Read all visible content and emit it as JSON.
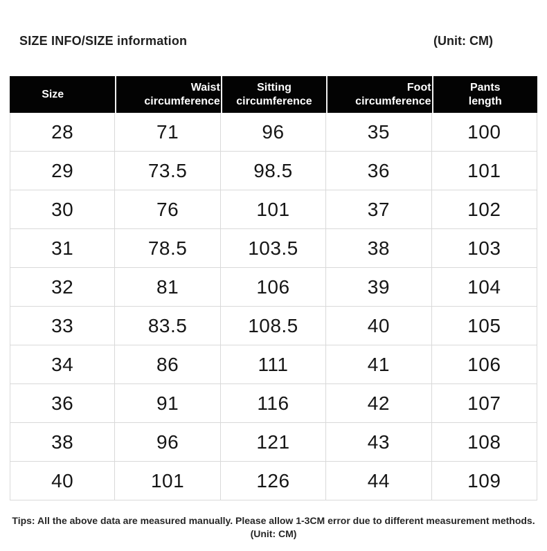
{
  "header": {
    "title": "SIZE INFO/SIZE information",
    "unit": "(Unit: CM)"
  },
  "table": {
    "columns": [
      {
        "key": "size",
        "lines": [
          "Size"
        ]
      },
      {
        "key": "waist-circumference",
        "lines": [
          "Waist",
          "circumference"
        ]
      },
      {
        "key": "sitting-circumference",
        "lines": [
          "Sitting",
          "circumference"
        ]
      },
      {
        "key": "foot-circumference",
        "lines": [
          "Foot",
          "circumference"
        ]
      },
      {
        "key": "pants-length",
        "lines": [
          "Pants",
          "length"
        ]
      }
    ],
    "rows": [
      [
        "28",
        "71",
        "96",
        "35",
        "100"
      ],
      [
        "29",
        "73.5",
        "98.5",
        "36",
        "101"
      ],
      [
        "30",
        "76",
        "101",
        "37",
        "102"
      ],
      [
        "31",
        "78.5",
        "103.5",
        "38",
        "103"
      ],
      [
        "32",
        "81",
        "106",
        "39",
        "104"
      ],
      [
        "33",
        "83.5",
        "108.5",
        "40",
        "105"
      ],
      [
        "34",
        "86",
        "111",
        "41",
        "106"
      ],
      [
        "36",
        "91",
        "116",
        "42",
        "107"
      ],
      [
        "38",
        "96",
        "121",
        "43",
        "108"
      ],
      [
        "40",
        "101",
        "126",
        "44",
        "109"
      ]
    ]
  },
  "footer": {
    "tips": "Tips: All the above data are measured manually. Please allow 1-3CM error due to different measurement methods.",
    "unit": "(Unit: CM)"
  },
  "colors": {
    "header_bg": "#030303",
    "header_text": "#ffffff",
    "grid_border": "#d9d9d9",
    "body_text": "#161616"
  },
  "chart_data": {
    "type": "table",
    "title": "SIZE INFO/SIZE information",
    "unit": "CM",
    "columns": [
      "Size",
      "Waist circumference",
      "Sitting circumference",
      "Foot circumference",
      "Pants length"
    ],
    "rows": [
      [
        28,
        71,
        96,
        35,
        100
      ],
      [
        29,
        73.5,
        98.5,
        36,
        101
      ],
      [
        30,
        76,
        101,
        37,
        102
      ],
      [
        31,
        78.5,
        103.5,
        38,
        103
      ],
      [
        32,
        81,
        106,
        39,
        104
      ],
      [
        33,
        83.5,
        108.5,
        40,
        105
      ],
      [
        34,
        86,
        111,
        41,
        106
      ],
      [
        36,
        91,
        116,
        42,
        107
      ],
      [
        38,
        96,
        121,
        43,
        108
      ],
      [
        40,
        101,
        126,
        44,
        109
      ]
    ],
    "note": "Tips: All the above data are measured manually. Please allow 1-3CM error due to different measurement methods. (Unit: CM)"
  }
}
